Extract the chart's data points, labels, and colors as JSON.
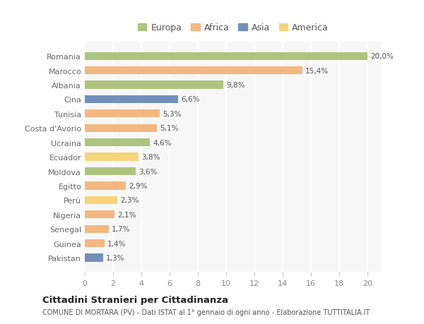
{
  "countries": [
    "Romania",
    "Marocco",
    "Albania",
    "Cina",
    "Tunisia",
    "Costa d'Avorio",
    "Ucraina",
    "Ecuador",
    "Moldova",
    "Egitto",
    "Perù",
    "Nigeria",
    "Senegal",
    "Guinea",
    "Pakistan"
  ],
  "values": [
    20.0,
    15.4,
    9.8,
    6.6,
    5.3,
    5.1,
    4.6,
    3.8,
    3.6,
    2.9,
    2.3,
    2.1,
    1.7,
    1.4,
    1.3
  ],
  "labels": [
    "20,0%",
    "15,4%",
    "9,8%",
    "6,6%",
    "5,3%",
    "5,1%",
    "4,6%",
    "3,8%",
    "3,6%",
    "2,9%",
    "2,3%",
    "2,1%",
    "1,7%",
    "1,4%",
    "1,3%"
  ],
  "colors": [
    "#adc47e",
    "#f2b880",
    "#adc47e",
    "#7191bc",
    "#f2b880",
    "#f2b880",
    "#adc47e",
    "#f5d47a",
    "#adc47e",
    "#f2b880",
    "#f5d47a",
    "#f2b880",
    "#f2b880",
    "#f2b880",
    "#7191bc"
  ],
  "legend_labels": [
    "Europa",
    "Africa",
    "Asia",
    "America"
  ],
  "legend_colors": [
    "#adc47e",
    "#f2b880",
    "#7191bc",
    "#f5d47a"
  ],
  "title": "Cittadini Stranieri per Cittadinanza",
  "subtitle": "COMUNE DI MORTARA (PV) - Dati ISTAT al 1° gennaio di ogni anno - Elaborazione TUTTITALIA.IT",
  "xlim": [
    0,
    21
  ],
  "xticks": [
    0,
    2,
    4,
    6,
    8,
    10,
    12,
    14,
    16,
    18,
    20
  ],
  "bg_color": "#ffffff",
  "plot_bg_color": "#f7f7f7",
  "grid_color": "#ffffff",
  "bar_height": 0.55
}
